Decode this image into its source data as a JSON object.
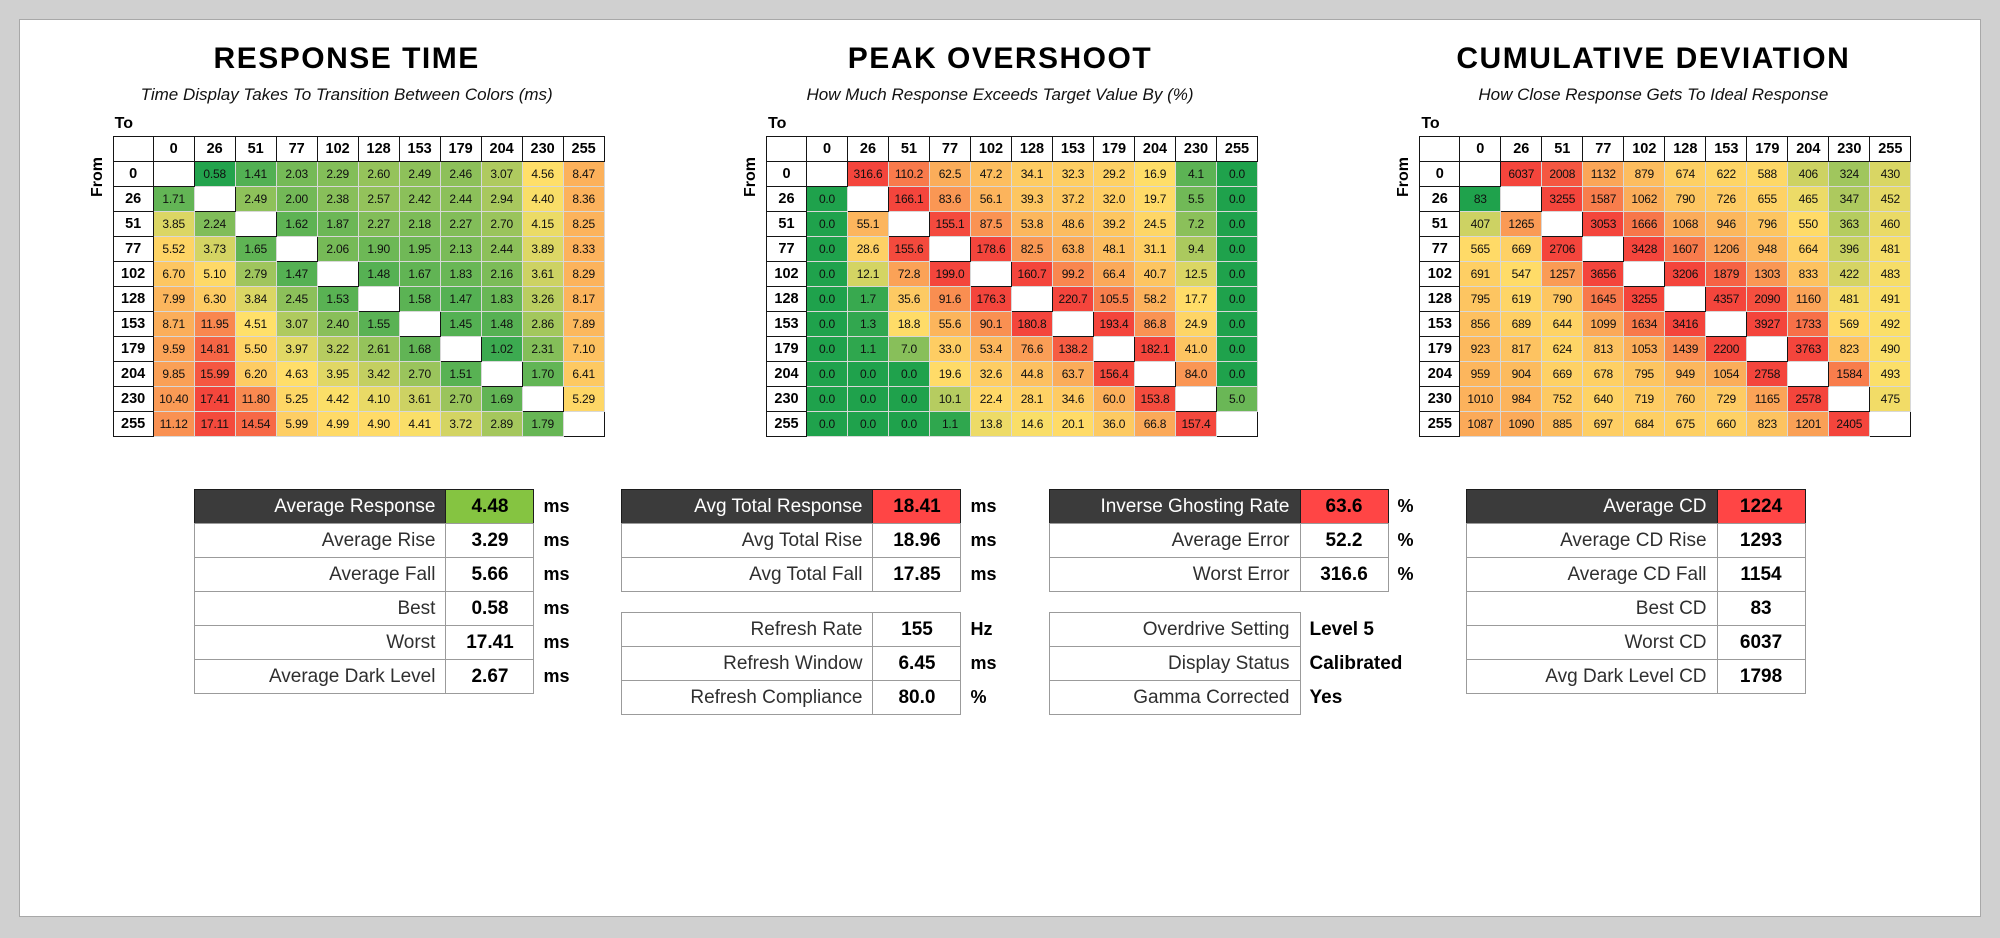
{
  "colors": {
    "page_bg": "#d0d0d0",
    "panel_bg": "#ffffff",
    "heat_low": "#1fa24c",
    "heat_mid": "#ffe069",
    "heat_high": "#f4453c",
    "header_bg": "#3b3b3b",
    "header_text": "#ffffff",
    "highlight_green": "#85c441",
    "highlight_red": "#ff4545"
  },
  "chart_data": [
    {
      "type": "heatmap",
      "id": "response-time",
      "title": "RESPONSE TIME",
      "subtitle": "Time Display Takes To Transition Between Colors (ms)",
      "axis_top": "To",
      "axis_left": "From",
      "categories": [
        "0",
        "26",
        "51",
        "77",
        "102",
        "128",
        "153",
        "179",
        "204",
        "230",
        "255"
      ],
      "decimals": 2,
      "scale": {
        "min": 0.5,
        "mid": 4.5,
        "max": 17.5
      },
      "rows": [
        [
          null,
          0.58,
          1.41,
          2.03,
          2.29,
          2.6,
          2.49,
          2.46,
          3.07,
          4.56,
          8.47
        ],
        [
          1.71,
          null,
          2.49,
          2.0,
          2.38,
          2.57,
          2.42,
          2.44,
          2.94,
          4.4,
          8.36
        ],
        [
          3.85,
          2.24,
          null,
          1.62,
          1.87,
          2.27,
          2.18,
          2.27,
          2.7,
          4.15,
          8.25
        ],
        [
          5.52,
          3.73,
          1.65,
          null,
          2.06,
          1.9,
          1.95,
          2.13,
          2.44,
          3.89,
          8.33
        ],
        [
          6.7,
          5.1,
          2.79,
          1.47,
          null,
          1.48,
          1.67,
          1.83,
          2.16,
          3.61,
          8.29
        ],
        [
          7.99,
          6.3,
          3.84,
          2.45,
          1.53,
          null,
          1.58,
          1.47,
          1.83,
          3.26,
          8.17
        ],
        [
          8.71,
          11.95,
          4.51,
          3.07,
          2.4,
          1.55,
          null,
          1.45,
          1.48,
          2.86,
          7.89
        ],
        [
          9.59,
          14.81,
          5.5,
          3.97,
          3.22,
          2.61,
          1.68,
          null,
          1.02,
          2.31,
          7.1
        ],
        [
          9.85,
          15.99,
          6.2,
          4.63,
          3.95,
          3.42,
          2.7,
          1.51,
          null,
          1.7,
          6.41
        ],
        [
          10.4,
          17.41,
          11.8,
          5.25,
          4.42,
          4.1,
          3.61,
          2.7,
          1.69,
          null,
          5.29
        ],
        [
          11.12,
          17.11,
          14.54,
          5.99,
          4.99,
          4.9,
          4.41,
          3.72,
          2.89,
          1.79,
          null
        ]
      ]
    },
    {
      "type": "heatmap",
      "id": "peak-overshoot",
      "title": "PEAK OVERSHOOT",
      "subtitle": "How Much Response Exceeds Target Value By (%)",
      "axis_top": "To",
      "axis_left": "From",
      "categories": [
        "0",
        "26",
        "51",
        "77",
        "102",
        "128",
        "153",
        "179",
        "204",
        "230",
        "255"
      ],
      "decimals": 1,
      "scale": {
        "min": 0,
        "mid": 15,
        "max": 160
      },
      "rows": [
        [
          null,
          316.6,
          110.2,
          62.5,
          47.2,
          34.1,
          32.3,
          29.2,
          16.9,
          4.1,
          0.0
        ],
        [
          0.0,
          null,
          166.1,
          83.6,
          56.1,
          39.3,
          37.2,
          32.0,
          19.7,
          5.5,
          0.0
        ],
        [
          0.0,
          55.1,
          null,
          155.1,
          87.5,
          53.8,
          48.6,
          39.2,
          24.5,
          7.2,
          0.0
        ],
        [
          0.0,
          28.6,
          155.6,
          null,
          178.6,
          82.5,
          63.8,
          48.1,
          31.1,
          9.4,
          0.0
        ],
        [
          0.0,
          12.1,
          72.8,
          199.0,
          null,
          160.7,
          99.2,
          66.4,
          40.7,
          12.5,
          0.0
        ],
        [
          0.0,
          1.7,
          35.6,
          91.6,
          176.3,
          null,
          220.7,
          105.5,
          58.2,
          17.7,
          0.0
        ],
        [
          0.0,
          1.3,
          18.8,
          55.6,
          90.1,
          180.8,
          null,
          193.4,
          86.8,
          24.9,
          0.0
        ],
        [
          0.0,
          1.1,
          7.0,
          33.0,
          53.4,
          76.6,
          138.2,
          null,
          182.1,
          41.0,
          0.0
        ],
        [
          0.0,
          0.0,
          0.0,
          19.6,
          32.6,
          44.8,
          63.7,
          156.4,
          null,
          84.0,
          0.0
        ],
        [
          0.0,
          0.0,
          0.0,
          10.1,
          22.4,
          28.1,
          34.6,
          60.0,
          153.8,
          null,
          5.0
        ],
        [
          0.0,
          0.0,
          0.0,
          1.1,
          13.8,
          14.6,
          20.1,
          36.0,
          66.8,
          157.4,
          null
        ]
      ]
    },
    {
      "type": "heatmap",
      "id": "cumulative-deviation",
      "title": "CUMULATIVE DEVIATION",
      "subtitle": "How Close Response Gets To Ideal Response",
      "axis_top": "To",
      "axis_left": "From",
      "categories": [
        "0",
        "26",
        "51",
        "77",
        "102",
        "128",
        "153",
        "179",
        "204",
        "230",
        "255"
      ],
      "decimals": 0,
      "scale": {
        "min": 83,
        "mid": 500,
        "max": 2200
      },
      "rows": [
        [
          null,
          6037,
          2008,
          1132,
          879,
          674,
          622,
          588,
          406,
          324,
          430
        ],
        [
          83,
          null,
          3255,
          1587,
          1062,
          790,
          726,
          655,
          465,
          347,
          452
        ],
        [
          407,
          1265,
          null,
          3053,
          1666,
          1068,
          946,
          796,
          550,
          363,
          460
        ],
        [
          565,
          669,
          2706,
          null,
          3428,
          1607,
          1206,
          948,
          664,
          396,
          481
        ],
        [
          691,
          547,
          1257,
          3656,
          null,
          3206,
          1879,
          1303,
          833,
          422,
          483
        ],
        [
          795,
          619,
          790,
          1645,
          3255,
          null,
          4357,
          2090,
          1160,
          481,
          491
        ],
        [
          856,
          689,
          644,
          1099,
          1634,
          3416,
          null,
          3927,
          1733,
          569,
          492
        ],
        [
          923,
          817,
          624,
          813,
          1053,
          1439,
          2200,
          null,
          3763,
          823,
          490
        ],
        [
          959,
          904,
          669,
          678,
          795,
          949,
          1054,
          2758,
          null,
          1584,
          493
        ],
        [
          1010,
          984,
          752,
          640,
          719,
          760,
          729,
          1165,
          2578,
          null,
          475
        ],
        [
          1087,
          1090,
          885,
          697,
          684,
          675,
          660,
          823,
          1201,
          2405,
          null
        ]
      ]
    },
    {
      "type": "table",
      "id": "response-summary",
      "groups": [
        [
          {
            "label": "Average Response",
            "value": "4.48",
            "unit": "ms",
            "highlight": "green"
          },
          {
            "label": "Average Rise",
            "value": "3.29",
            "unit": "ms"
          },
          {
            "label": "Average Fall",
            "value": "5.66",
            "unit": "ms"
          },
          {
            "label": "Best",
            "value": "0.58",
            "unit": "ms"
          },
          {
            "label": "Worst",
            "value": "17.41",
            "unit": "ms"
          },
          {
            "label": "Average Dark Level",
            "value": "2.67",
            "unit": "ms"
          }
        ]
      ]
    },
    {
      "type": "table",
      "id": "total-response-summary",
      "groups": [
        [
          {
            "label": "Avg Total Response",
            "value": "18.41",
            "unit": "ms",
            "highlight": "red"
          },
          {
            "label": "Avg Total Rise",
            "value": "18.96",
            "unit": "ms"
          },
          {
            "label": "Avg Total Fall",
            "value": "17.85",
            "unit": "ms"
          }
        ],
        [
          {
            "label": "Refresh Rate",
            "value": "155",
            "unit": "Hz"
          },
          {
            "label": "Refresh Window",
            "value": "6.45",
            "unit": "ms"
          },
          {
            "label": "Refresh Compliance",
            "value": "80.0",
            "unit": "%"
          }
        ]
      ]
    },
    {
      "type": "table",
      "id": "overshoot-summary",
      "groups": [
        [
          {
            "label": "Inverse Ghosting Rate",
            "value": "63.6",
            "unit": "%",
            "highlight": "red"
          },
          {
            "label": "Average Error",
            "value": "52.2",
            "unit": "%"
          },
          {
            "label": "Worst Error",
            "value": "316.6",
            "unit": "%"
          }
        ],
        [
          {
            "label": "Overdrive Setting",
            "value": "Level 5",
            "plain": true
          },
          {
            "label": "Display Status",
            "value": "Calibrated",
            "plain": true
          },
          {
            "label": "Gamma Corrected",
            "value": "Yes",
            "plain": true
          }
        ]
      ]
    },
    {
      "type": "table",
      "id": "cd-summary",
      "groups": [
        [
          {
            "label": "Average CD",
            "value": "1224",
            "highlight": "red"
          },
          {
            "label": "Average CD Rise",
            "value": "1293"
          },
          {
            "label": "Average CD Fall",
            "value": "1154"
          },
          {
            "label": "Best CD",
            "value": "83"
          },
          {
            "label": "Worst CD",
            "value": "6037"
          },
          {
            "label": "Avg Dark Level CD",
            "value": "1798"
          }
        ]
      ]
    }
  ]
}
